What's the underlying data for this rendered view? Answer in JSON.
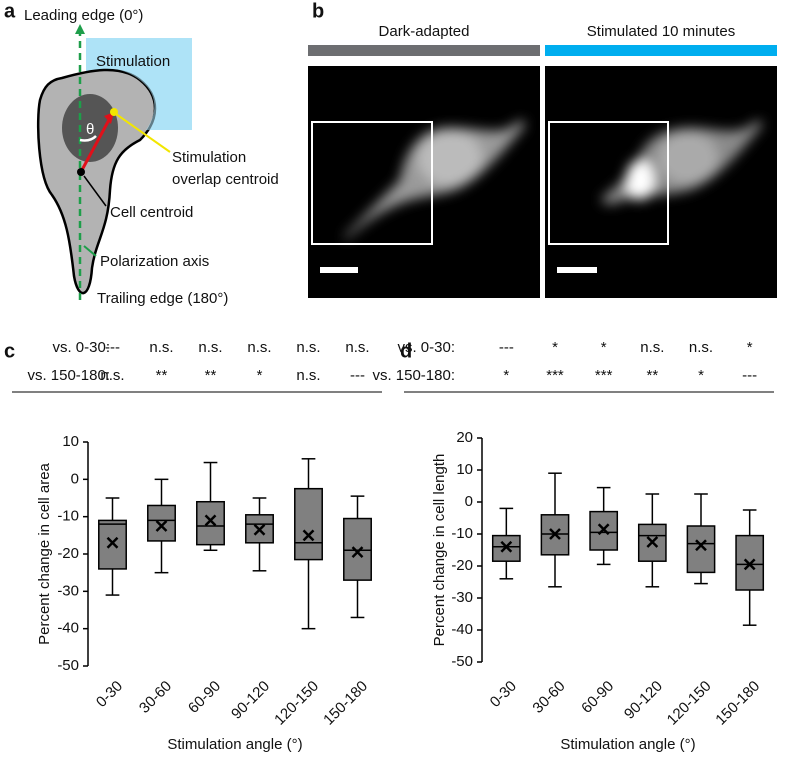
{
  "diagram": {
    "panel_label": "a",
    "leading_edge": "Leading edge (0°)",
    "stimulation": "Stimulation",
    "theta": "θ",
    "overlap_centroid": [
      "Stimulation",
      "overlap centroid"
    ],
    "cell_centroid": "Cell centroid",
    "polarization_axis": "Polarization axis",
    "trailing_edge": "Trailing edge (180°)"
  },
  "images": {
    "panel_label": "b",
    "conditions": [
      {
        "label": "Dark-adapted",
        "color": "#6d6e71"
      },
      {
        "label": "Stimulated 10 minutes",
        "color": "#00aeef"
      }
    ]
  },
  "chart_data": [
    {
      "type": "box",
      "panel_label": "c",
      "y_label": "Percent change in cell area",
      "x_label": "Stimulation angle (°)",
      "categories": [
        "0-30",
        "30-60",
        "60-90",
        "90-120",
        "120-150",
        "150-180"
      ],
      "series": [
        {
          "color": "#808080",
          "whishi": [
            -5,
            0,
            4.5,
            -5,
            5.5,
            -4.5
          ],
          "q3": [
            -11,
            -7,
            -6,
            -9.5,
            -2.5,
            -10.5
          ],
          "median": [
            -12,
            -11,
            -12.5,
            -12,
            -17,
            -19
          ],
          "q1": [
            -24,
            -16.5,
            -17.5,
            -17,
            -21.5,
            -27
          ],
          "whislo": [
            -31,
            -25,
            -19,
            -24.5,
            -40,
            -37
          ],
          "mean": [
            -17,
            -12.5,
            -11,
            -13.5,
            -15,
            -19.5
          ]
        }
      ],
      "ylim": [
        -50,
        10
      ],
      "yticks": [
        -50,
        -40,
        -30,
        -20,
        -10,
        0,
        10
      ],
      "annotations": [
        {
          "label": "vs. 0-30:",
          "values": [
            "---",
            "n.s.",
            "n.s.",
            "n.s.",
            "n.s.",
            "n.s."
          ]
        },
        {
          "label": "vs. 150-180:",
          "values": [
            "n.s.",
            "**",
            "**",
            "*",
            "n.s.",
            "---"
          ]
        }
      ]
    },
    {
      "type": "box",
      "panel_label": "d",
      "y_label": "Percent change in cell length",
      "x_label": "Stimulation angle (°)",
      "categories": [
        "0-30",
        "30-60",
        "60-90",
        "90-120",
        "120-150",
        "150-180"
      ],
      "series": [
        {
          "color": "#808080",
          "whishi": [
            -2,
            9,
            4.5,
            2.5,
            2.5,
            -2.5
          ],
          "q3": [
            -10.5,
            -4,
            -3,
            -7,
            -7.5,
            -10.5
          ],
          "median": [
            -14,
            -10,
            -9.5,
            -10.5,
            -13,
            -19.5
          ],
          "q1": [
            -18.5,
            -16.5,
            -15,
            -18.5,
            -22,
            -27.5
          ],
          "whislo": [
            -24,
            -26.5,
            -19.5,
            -26.5,
            -25.5,
            -38.5
          ],
          "mean": [
            -14,
            -10,
            -8.5,
            -12.5,
            -13.5,
            -19.5
          ]
        }
      ],
      "ylim": [
        -50,
        20
      ],
      "yticks": [
        -50,
        -40,
        -30,
        -20,
        -10,
        0,
        10,
        20
      ],
      "annotations": [
        {
          "label": "vs. 0-30:",
          "values": [
            "---",
            "*",
            "*",
            "n.s.",
            "n.s.",
            "*"
          ]
        },
        {
          "label": "vs. 150-180:",
          "values": [
            "*",
            "***",
            "***",
            "**",
            "*",
            "---"
          ]
        }
      ]
    }
  ]
}
